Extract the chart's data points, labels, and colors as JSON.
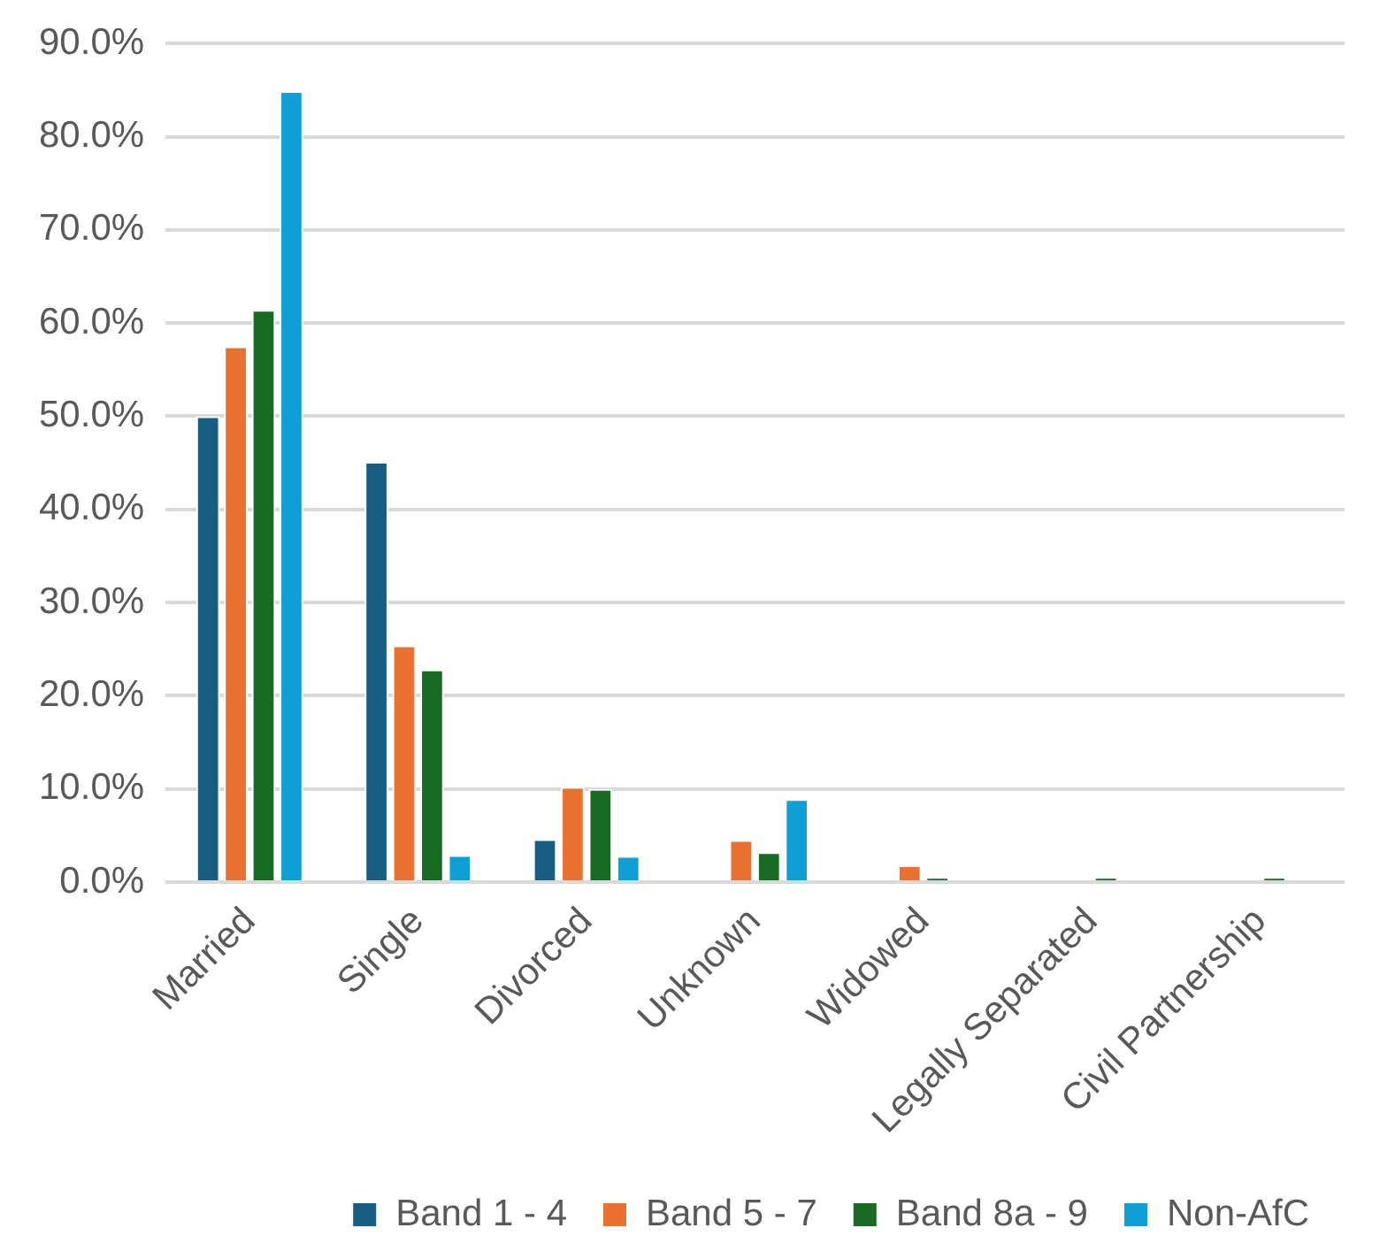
{
  "chart_data": {
    "type": "bar",
    "categories": [
      "Married",
      "Single",
      "Divorced",
      "Unknown",
      "Widowed",
      "Legally Separated",
      "Civil Partnership"
    ],
    "series": [
      {
        "name": "Band 1 - 4",
        "color": "#175e80",
        "values": [
          50.0,
          45.1,
          4.6,
          0,
          0,
          0,
          0
        ]
      },
      {
        "name": "Band 5 - 7",
        "color": "#e97132",
        "values": [
          57.5,
          25.4,
          10.2,
          4.5,
          1.8,
          0,
          0
        ]
      },
      {
        "name": "Band 8a - 9",
        "color": "#196b24",
        "values": [
          61.4,
          22.8,
          10.0,
          3.2,
          0.5,
          0.5,
          0.5
        ]
      },
      {
        "name": "Non-AfC",
        "color": "#0f9ed5",
        "values": [
          84.9,
          2.9,
          2.8,
          8.9,
          0,
          0,
          0
        ]
      }
    ],
    "ylim": [
      0,
      90
    ],
    "yticks": [
      {
        "value": 0,
        "label": "0.0%"
      },
      {
        "value": 10,
        "label": "10.0%"
      },
      {
        "value": 20,
        "label": "20.0%"
      },
      {
        "value": 30,
        "label": "30.0%"
      },
      {
        "value": 40,
        "label": "40.0%"
      },
      {
        "value": 50,
        "label": "50.0%"
      },
      {
        "value": 60,
        "label": "60.0%"
      },
      {
        "value": 70,
        "label": "70.0%"
      },
      {
        "value": 80,
        "label": "80.0%"
      },
      {
        "value": 90,
        "label": "90.0%"
      }
    ],
    "grid": "y",
    "legend": "bottom"
  }
}
